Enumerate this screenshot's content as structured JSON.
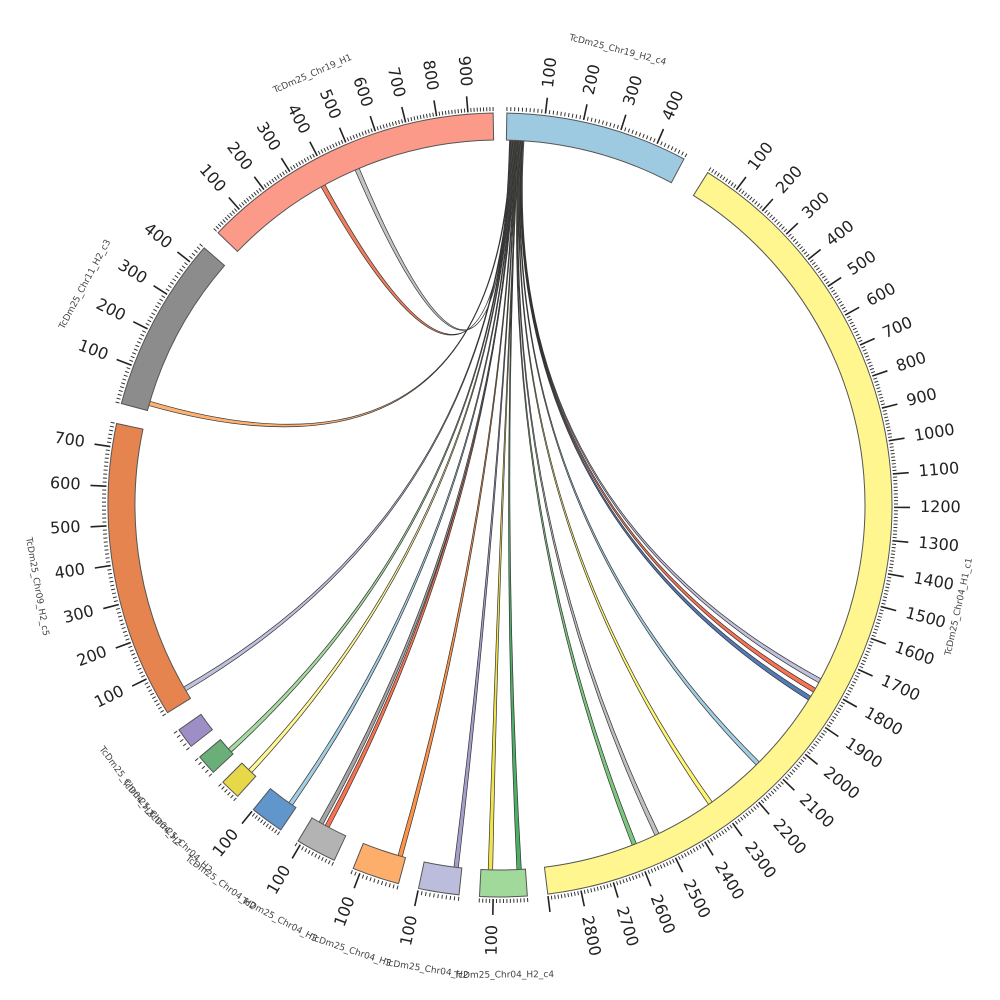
{
  "segments": [
    {
      "id": "s_c4_top",
      "label": "TcDm25_Chr19_H2_c4",
      "length": 480,
      "color": "#9ecae1",
      "tick_labels": [
        "100",
        "200",
        "300",
        "400"
      ]
    },
    {
      "id": "s_big",
      "label": "TcDm25_Chr04_H1_c1",
      "length": 2900,
      "color": "#fff68f",
      "tick_labels": [
        "100",
        "200",
        "300",
        "400",
        "500",
        "600",
        "700",
        "800",
        "900",
        "1000",
        "1100",
        "1200",
        "1300",
        "1400",
        "1500",
        "1600",
        "1700",
        "1800",
        "1900",
        "2000",
        "2100",
        "2200",
        "2300",
        "2400",
        "2500",
        "2600",
        "2700",
        "2800"
      ]
    },
    {
      "id": "s_g",
      "label": "TcDm25_Chr04_H2_c4",
      "length": 140,
      "color": "#a1d99b",
      "tick_labels": [
        "100"
      ]
    },
    {
      "id": "s_lav",
      "label": "TcDm25_Chr04_H2",
      "length": 100,
      "color": "#bcbddc",
      "tick_labels": [
        "100"
      ]
    },
    {
      "id": "s_o",
      "label": "TcDm25_Chr04_H3",
      "length": 120,
      "color": "#fdae6b",
      "tick_labels": [
        "100"
      ]
    },
    {
      "id": "s_gr",
      "label": "TcDm25_Chr04_H3",
      "length": 110,
      "color": "#b3b3b3",
      "tick_labels": [
        "100"
      ]
    },
    {
      "id": "s_b",
      "label": "TcDm25_Chr04_H2",
      "length": 100,
      "color": "#6096cc",
      "tick_labels": [
        "100"
      ]
    },
    {
      "id": "s_y",
      "label": "TcDm25_Chr04_H2",
      "length": 50,
      "color": "#e7d84a",
      "tick_labels": []
    },
    {
      "id": "s_gg",
      "label": "TcDm25_Chr04_H2",
      "length": 40,
      "color": "#6aae7a",
      "tick_labels": []
    },
    {
      "id": "s_p",
      "label": "TcDm25_Chr04_H2",
      "length": 40,
      "color": "#9e8ec6",
      "tick_labels": []
    },
    {
      "id": "s_c5",
      "label": "TcDm25_Chr09_H2_c5",
      "length": 760,
      "color": "#e5844f",
      "tick_labels": [
        "100",
        "200",
        "300",
        "400",
        "500",
        "600",
        "700"
      ]
    },
    {
      "id": "s_c3",
      "label": "TcDm25_Chr11_H2_c3",
      "length": 450,
      "color": "#8c8c8c",
      "tick_labels": [
        "100",
        "200",
        "300",
        "400"
      ]
    },
    {
      "id": "s_h1",
      "label": "TcDm25_Chr19_H1",
      "length": 980,
      "color": "#fb9a88",
      "tick_labels": [
        "100",
        "200",
        "300",
        "400",
        "500",
        "600",
        "700",
        "800",
        "900"
      ]
    }
  ],
  "links": [
    {
      "from": "s_c4_top",
      "from_pos": 10,
      "to": "s_h1",
      "to_pos": 500,
      "color": "#c0c0c0"
    },
    {
      "from": "s_c4_top",
      "from_pos": 12,
      "to": "s_h1",
      "to_pos": 370,
      "color": "#ef7654"
    },
    {
      "from": "s_c4_top",
      "from_pos": 14,
      "to": "s_c3",
      "to_pos": 20,
      "color": "#fdae6b"
    },
    {
      "from": "s_c4_top",
      "from_pos": 16,
      "to": "s_c5",
      "to_pos": 30,
      "color": "#bcbddc"
    },
    {
      "from": "s_c4_top",
      "from_pos": 18,
      "to": "s_gg",
      "to_pos": 10,
      "color": "#a1d99b"
    },
    {
      "from": "s_c4_top",
      "from_pos": 20,
      "to": "s_y",
      "to_pos": 20,
      "color": "#fff68f"
    },
    {
      "from": "s_c4_top",
      "from_pos": 22,
      "to": "s_b",
      "to_pos": 20,
      "color": "#9ecae1"
    },
    {
      "from": "s_c4_top",
      "from_pos": 24,
      "to": "s_gr",
      "to_pos": 60,
      "color": "#fb6a4a"
    },
    {
      "from": "s_c4_top",
      "from_pos": 26,
      "to": "s_gr",
      "to_pos": 80,
      "color": "#a0a0a0"
    },
    {
      "from": "s_c4_top",
      "from_pos": 28,
      "to": "s_o",
      "to_pos": 15,
      "color": "#fd8d3c"
    },
    {
      "from": "s_c4_top",
      "from_pos": 30,
      "to": "s_lav",
      "to_pos": 15,
      "color": "#9e9ac8"
    },
    {
      "from": "s_c4_top",
      "from_pos": 32,
      "to": "s_g",
      "to_pos": 20,
      "color": "#41ab5d"
    },
    {
      "from": "s_c4_top",
      "from_pos": 34,
      "to": "s_g",
      "to_pos": 110,
      "color": "#f0e442"
    },
    {
      "from": "s_c4_top",
      "from_pos": 36,
      "to": "s_big",
      "to_pos": 2600,
      "color": "#74c476"
    },
    {
      "from": "s_c4_top",
      "from_pos": 38,
      "to": "s_big",
      "to_pos": 2520,
      "color": "#bdbdbd"
    },
    {
      "from": "s_c4_top",
      "from_pos": 40,
      "to": "s_big",
      "to_pos": 2320,
      "color": "#fff36b"
    },
    {
      "from": "s_c4_top",
      "from_pos": 42,
      "to": "s_big",
      "to_pos": 2120,
      "color": "#9ecae1"
    },
    {
      "from": "s_c4_top",
      "from_pos": 44,
      "to": "s_big",
      "to_pos": 1850,
      "color": "#4a74b4"
    },
    {
      "from": "s_c4_top",
      "from_pos": 46,
      "to": "s_big",
      "to_pos": 1820,
      "color": "#fb6a4a"
    },
    {
      "from": "s_c4_top",
      "from_pos": 48,
      "to": "s_big",
      "to_pos": 1785,
      "color": "#bcbddc"
    }
  ]
}
